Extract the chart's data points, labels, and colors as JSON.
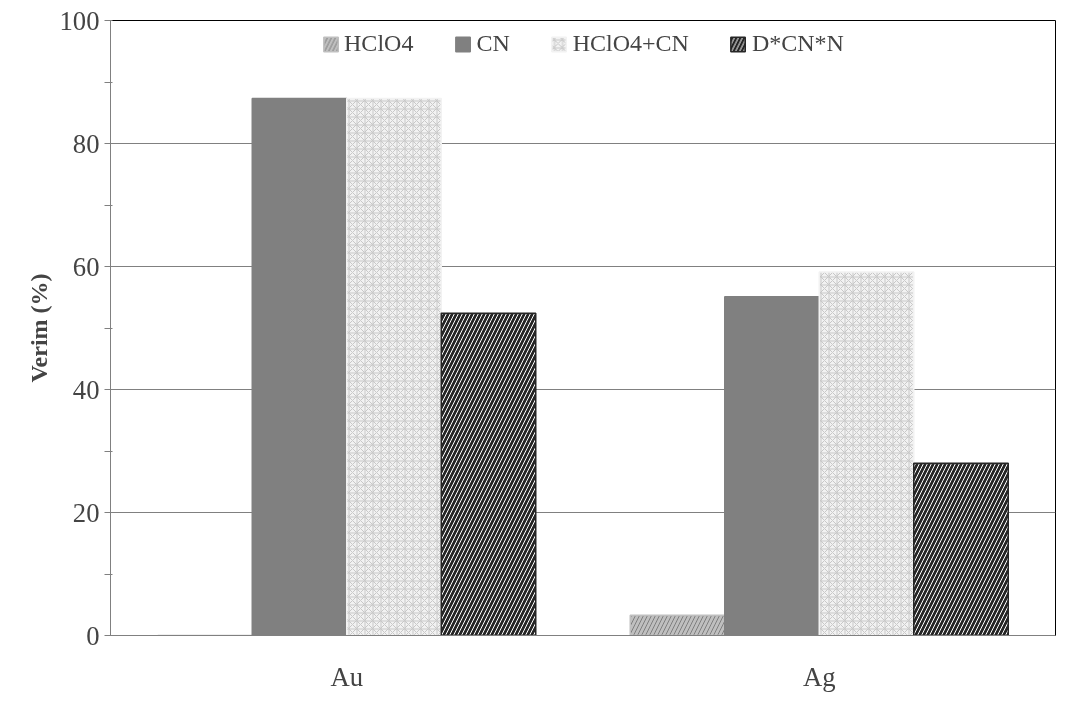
{
  "chart_data": {
    "type": "bar",
    "ylabel": "Verim (%)",
    "categories": [
      "Au",
      "Ag"
    ],
    "series": [
      {
        "name": "HClO4",
        "color": "#bfbfbf",
        "values": [
          0,
          3.3
        ]
      },
      {
        "name": "CN",
        "color": "#808080",
        "values": [
          87.3,
          55.1
        ]
      },
      {
        "name": "HClO4+CN",
        "color": "#f2f2f2",
        "values": [
          87.3,
          59.1
        ]
      },
      {
        "name": "D*CN*N",
        "color": "#262626",
        "values": [
          52.4,
          28
        ]
      }
    ],
    "ylim": [
      0,
      100
    ],
    "yticks": [
      0,
      {
        "value": 10,
        "label": null
      },
      20,
      {
        "value": 30,
        "label": null
      },
      40,
      {
        "value": 50,
        "label": null
      },
      60,
      {
        "value": 70,
        "label": null
      },
      80,
      {
        "value": 90,
        "label": null
      },
      100
    ],
    "grid": "y",
    "legend": "top"
  }
}
